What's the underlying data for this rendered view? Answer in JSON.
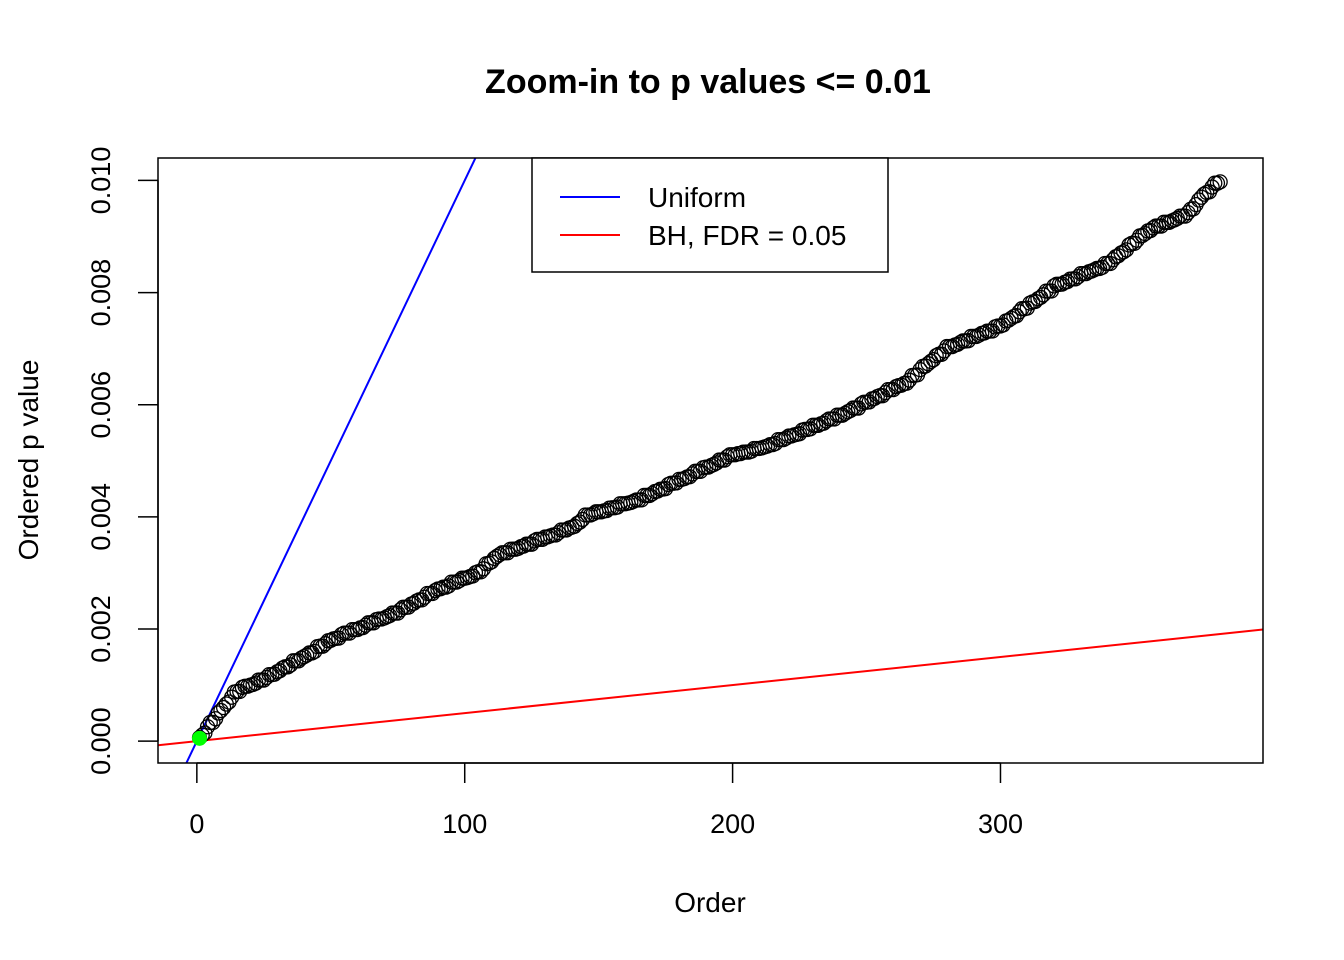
{
  "chart_data": {
    "type": "scatter",
    "title": "Zoom-in to p values <= 0.01",
    "xlabel": "Order",
    "ylabel": "Ordered p value",
    "xlim": [
      -14.5,
      398
    ],
    "ylim": [
      -0.00039,
      0.0104
    ],
    "x_ticks": [
      0,
      100,
      200,
      300
    ],
    "y_ticks": [
      0.0,
      0.002,
      0.004,
      0.006,
      0.008,
      0.01
    ],
    "x_tick_labels": [
      "0",
      "100",
      "200",
      "300"
    ],
    "y_tick_labels": [
      "0.000",
      "0.002",
      "0.004",
      "0.006",
      "0.008",
      "0.010"
    ],
    "grid": false,
    "legend": {
      "placement": "top-center",
      "entries": [
        {
          "label": "Uniform",
          "color": "#0000ff"
        },
        {
          "label": "BH, FDR = 0.05",
          "color": "#ff0000"
        }
      ]
    },
    "lines": [
      {
        "name": "Uniform",
        "color": "#0000ff",
        "slope": 0.0001,
        "intercept": 0
      },
      {
        "name": "BH, FDR = 0.05",
        "color": "#ff0000",
        "slope": 5e-06,
        "intercept": 0
      }
    ],
    "points_count": 382,
    "points_color": "#000000",
    "significant_points": {
      "color": "#00ff00",
      "x": [
        1
      ],
      "y": [
        5e-05
      ]
    },
    "curve_anchors": [
      {
        "x": 1,
        "y": 5e-05
      },
      {
        "x": 5,
        "y": 0.0003
      },
      {
        "x": 10,
        "y": 0.0006
      },
      {
        "x": 15,
        "y": 0.0009
      },
      {
        "x": 25,
        "y": 0.0011
      },
      {
        "x": 40,
        "y": 0.0015
      },
      {
        "x": 50,
        "y": 0.0018
      },
      {
        "x": 60,
        "y": 0.002
      },
      {
        "x": 75,
        "y": 0.0023
      },
      {
        "x": 90,
        "y": 0.0027
      },
      {
        "x": 100,
        "y": 0.0029
      },
      {
        "x": 105,
        "y": 0.003
      },
      {
        "x": 112,
        "y": 0.0033
      },
      {
        "x": 140,
        "y": 0.0038
      },
      {
        "x": 145,
        "y": 0.004
      },
      {
        "x": 165,
        "y": 0.0043
      },
      {
        "x": 200,
        "y": 0.0051
      },
      {
        "x": 210,
        "y": 0.0052
      },
      {
        "x": 240,
        "y": 0.0058
      },
      {
        "x": 265,
        "y": 0.0064
      },
      {
        "x": 272,
        "y": 0.0067
      },
      {
        "x": 280,
        "y": 0.007
      },
      {
        "x": 300,
        "y": 0.0074
      },
      {
        "x": 320,
        "y": 0.0081
      },
      {
        "x": 340,
        "y": 0.0085
      },
      {
        "x": 355,
        "y": 0.0091
      },
      {
        "x": 370,
        "y": 0.0094
      },
      {
        "x": 375,
        "y": 0.0097
      },
      {
        "x": 382,
        "y": 0.01
      }
    ]
  }
}
